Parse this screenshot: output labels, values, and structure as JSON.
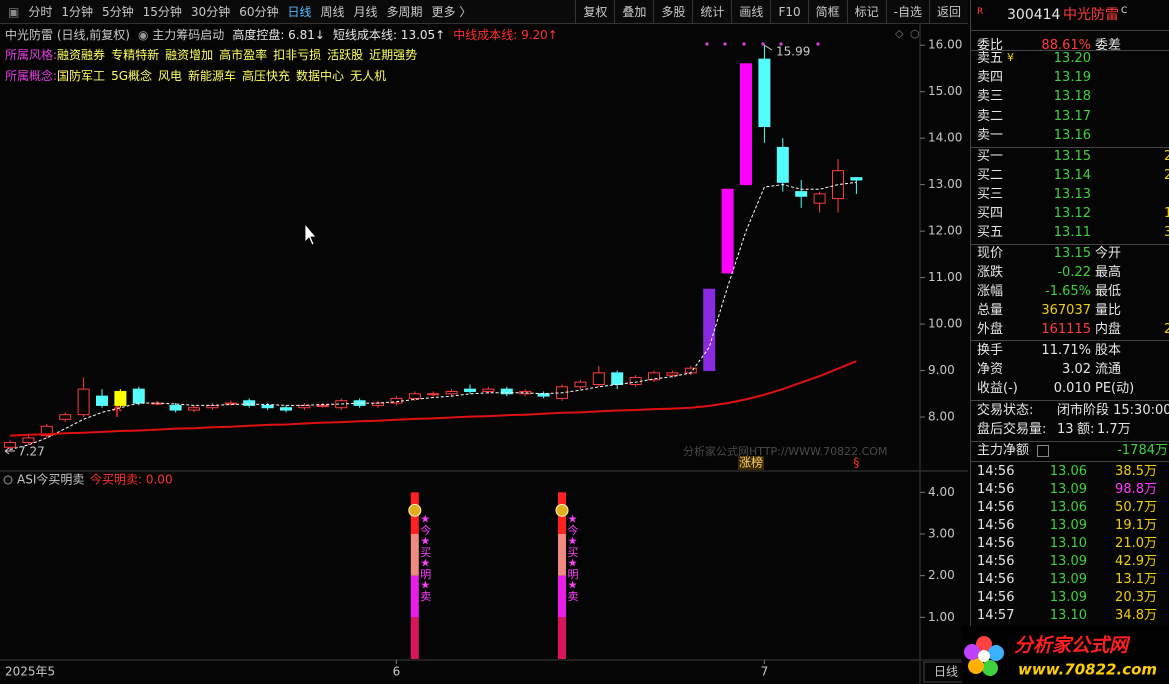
{
  "toolbar": {
    "periods": [
      "分时",
      "1分钟",
      "5分钟",
      "15分钟",
      "30分钟",
      "60分钟",
      "日线",
      "周线",
      "月线",
      "多周期",
      "更多 〉"
    ],
    "tools": [
      "复权",
      "叠加",
      "多股",
      "统计",
      "画线",
      "F10",
      "简框",
      "标记",
      "-自选",
      "返回"
    ]
  },
  "info": {
    "title": "中光防雷 (日线,前复权)",
    "indicator": "主力筹码启动",
    "control": "高度控盘: 6.81↓",
    "short_cost": "短线成本线: 13.05↑",
    "mid_cost": "中线成本线: 9.20↑",
    "style_label": "所属风格:",
    "styles": [
      "融资融券",
      "专精特新",
      "融资增加",
      "高市盈率",
      "扣非亏损",
      "活跃股",
      "近期强势"
    ],
    "concept_label": "所属概念:",
    "concepts": [
      "国防军工",
      "5G概念",
      "风电",
      "新能源车",
      "高压快充",
      "数据中心",
      "无人机"
    ]
  },
  "chart_data": [
    {
      "type": "candlestick",
      "categories": [
        "2025年5",
        null,
        null,
        null,
        null,
        null,
        null,
        null,
        null,
        null,
        null,
        null,
        null,
        null,
        null,
        null,
        null,
        null,
        null,
        null,
        null,
        "6",
        null,
        null,
        null,
        null,
        null,
        null,
        null,
        null,
        null,
        null,
        null,
        null,
        null,
        null,
        null,
        null,
        null,
        null,
        null,
        "7",
        null,
        null,
        null,
        null,
        null
      ],
      "open": [
        7.35,
        7.45,
        7.6,
        7.95,
        8.05,
        8.45,
        8.25,
        8.6,
        8.3,
        8.25,
        8.15,
        8.2,
        8.3,
        8.35,
        8.25,
        8.2,
        8.2,
        8.25,
        8.2,
        8.35,
        8.25,
        8.3,
        8.4,
        8.5,
        8.5,
        8.6,
        8.55,
        8.6,
        8.5,
        8.5,
        8.4,
        8.65,
        8.7,
        8.95,
        8.7,
        8.8,
        8.9,
        8.95,
        9.0,
        11.1,
        13.0,
        15.7,
        13.8,
        12.85,
        12.6,
        12.7,
        13.15
      ],
      "close": [
        7.45,
        7.55,
        7.8,
        8.05,
        8.6,
        8.25,
        8.55,
        8.3,
        8.3,
        8.15,
        8.2,
        8.25,
        8.3,
        8.25,
        8.2,
        8.15,
        8.25,
        8.25,
        8.35,
        8.25,
        8.3,
        8.4,
        8.5,
        8.5,
        8.55,
        8.55,
        8.6,
        8.5,
        8.55,
        8.45,
        8.65,
        8.75,
        8.95,
        8.7,
        8.85,
        8.95,
        8.95,
        9.05,
        10.75,
        12.9,
        15.6,
        14.25,
        13.05,
        12.75,
        12.8,
        13.3,
        13.1
      ],
      "high": [
        7.5,
        7.6,
        7.85,
        8.1,
        8.85,
        8.6,
        8.6,
        8.65,
        8.35,
        8.3,
        8.25,
        8.3,
        8.35,
        8.4,
        8.3,
        8.25,
        8.3,
        8.3,
        8.4,
        8.4,
        8.35,
        8.45,
        8.55,
        8.55,
        8.6,
        8.7,
        8.65,
        8.65,
        8.6,
        8.55,
        8.7,
        8.8,
        9.1,
        9.0,
        8.9,
        9.0,
        9.0,
        9.1,
        10.75,
        12.9,
        15.6,
        15.99,
        14.0,
        13.1,
        12.85,
        13.55,
        13.15
      ],
      "low": [
        7.27,
        7.4,
        7.55,
        7.9,
        8.0,
        8.2,
        8.2,
        8.25,
        8.25,
        8.1,
        8.1,
        8.15,
        8.25,
        8.2,
        8.15,
        8.1,
        8.15,
        8.2,
        8.15,
        8.2,
        8.2,
        8.25,
        8.35,
        8.45,
        8.45,
        8.5,
        8.5,
        8.45,
        8.45,
        8.4,
        8.35,
        8.6,
        8.65,
        8.6,
        8.65,
        8.75,
        8.85,
        8.9,
        9.0,
        11.1,
        13.0,
        13.9,
        12.85,
        12.5,
        12.4,
        12.4,
        12.8
      ],
      "up_color": "#ff3c3c",
      "down_color": "#54fcfc",
      "highlights": [
        {
          "index": 6,
          "color": "#ffff00"
        },
        {
          "index": 38,
          "color": "#8a2be2"
        },
        {
          "index": 39,
          "color": "#ff00ff"
        },
        {
          "index": 40,
          "color": "#ff00ff"
        }
      ],
      "series": [
        {
          "color": "#ffffff",
          "dashed": true,
          "values": [
            7.3,
            7.4,
            7.55,
            7.75,
            7.95,
            8.1,
            8.2,
            8.3,
            8.3,
            8.28,
            8.25,
            8.25,
            8.27,
            8.28,
            8.27,
            8.25,
            8.25,
            8.27,
            8.28,
            8.3,
            8.3,
            8.33,
            8.38,
            8.42,
            8.45,
            8.5,
            8.52,
            8.52,
            8.52,
            8.5,
            8.52,
            8.58,
            8.65,
            8.7,
            8.75,
            8.82,
            8.87,
            8.95,
            9.5,
            10.8,
            12.0,
            12.95,
            13.0,
            12.9,
            12.9,
            13.0,
            13.05
          ]
        },
        {
          "color": "#e01010",
          "dashed": false,
          "values": [
            7.6,
            7.62,
            7.63,
            7.65,
            7.66,
            7.68,
            7.7,
            7.71,
            7.73,
            7.75,
            7.76,
            7.78,
            7.79,
            7.81,
            7.83,
            7.84,
            7.86,
            7.88,
            7.89,
            7.91,
            7.92,
            7.94,
            7.96,
            7.97,
            7.99,
            8.01,
            8.02,
            8.04,
            8.05,
            8.07,
            8.09,
            8.1,
            8.12,
            8.14,
            8.15,
            8.17,
            8.18,
            8.2,
            8.24,
            8.3,
            8.38,
            8.48,
            8.6,
            8.74,
            8.88,
            9.04,
            9.2
          ]
        }
      ],
      "annotations": [
        "涨榜",
        "§"
      ],
      "watermark": "分析家公式网HTTP://WWW.70822.COM",
      "ylim": [
        6.86,
        16.37
      ],
      "yticks": [
        {
          "value": 16,
          "label": "16.00"
        },
        {
          "value": 15,
          "label": "15.00"
        },
        {
          "value": 14,
          "label": "14.00"
        },
        {
          "value": 13,
          "label": "13.00"
        },
        {
          "value": 12,
          "label": "12.00"
        },
        {
          "value": 11,
          "label": "11.00"
        },
        {
          "value": 10,
          "label": "10.00"
        },
        {
          "value": 9,
          "label": "9.00"
        },
        {
          "value": 8,
          "label": "8.00"
        }
      ]
    },
    {
      "type": "stacked_bar",
      "title": "ASI今买明卖",
      "subtitle": "今买明卖: 0.00",
      "annotation": "★今★买★明★卖",
      "series": [
        {
          "color": "#d8145c",
          "values": [
            null,
            null,
            null,
            null,
            null,
            null,
            null,
            null,
            null,
            null,
            null,
            null,
            null,
            null,
            null,
            null,
            null,
            null,
            null,
            null,
            null,
            null,
            1,
            null,
            null,
            null,
            null,
            null,
            null,
            null,
            1,
            null,
            null,
            null,
            null,
            null,
            null,
            null,
            null,
            null,
            null,
            null,
            null,
            null,
            null,
            null,
            null
          ]
        },
        {
          "color": "#e81ee8",
          "values": [
            null,
            null,
            null,
            null,
            null,
            null,
            null,
            null,
            null,
            null,
            null,
            null,
            null,
            null,
            null,
            null,
            null,
            null,
            null,
            null,
            null,
            null,
            1,
            null,
            null,
            null,
            null,
            null,
            null,
            null,
            1,
            null,
            null,
            null,
            null,
            null,
            null,
            null,
            null,
            null,
            null,
            null,
            null,
            null,
            null,
            null,
            null
          ]
        },
        {
          "color": "#f08a80",
          "values": [
            null,
            null,
            null,
            null,
            null,
            null,
            null,
            null,
            null,
            null,
            null,
            null,
            null,
            null,
            null,
            null,
            null,
            null,
            null,
            null,
            null,
            null,
            1,
            null,
            null,
            null,
            null,
            null,
            null,
            null,
            1,
            null,
            null,
            null,
            null,
            null,
            null,
            null,
            null,
            null,
            null,
            null,
            null,
            null,
            null,
            null,
            null
          ]
        },
        {
          "color": "#ff2020",
          "values": [
            null,
            null,
            null,
            null,
            null,
            null,
            null,
            null,
            null,
            null,
            null,
            null,
            null,
            null,
            null,
            null,
            null,
            null,
            null,
            null,
            null,
            null,
            1,
            null,
            null,
            null,
            null,
            null,
            null,
            null,
            1,
            null,
            null,
            null,
            null,
            null,
            null,
            null,
            null,
            null,
            null,
            null,
            null,
            null,
            null,
            null,
            null
          ]
        }
      ],
      "ylim": [
        0,
        4.44
      ],
      "yticks": [
        {
          "value": 4,
          "label": "4.00"
        },
        {
          "value": 3,
          "label": "3.00"
        },
        {
          "value": 2,
          "label": "2.00"
        },
        {
          "value": 1,
          "label": "1.00"
        }
      ]
    }
  ],
  "quote": {
    "badge": "R",
    "code": "300414",
    "name": "中光防雷",
    "mark": "C",
    "ratio": {
      "label": "委比",
      "value": "88.61%",
      "label2": "委差"
    },
    "asks": [
      {
        "label": "卖五",
        "price": "13.20"
      },
      {
        "label": "卖四",
        "price": "13.19"
      },
      {
        "label": "卖三",
        "price": "13.18"
      },
      {
        "label": "卖二",
        "price": "13.17"
      },
      {
        "label": "卖一",
        "price": "13.16"
      }
    ],
    "bids": [
      {
        "label": "买一",
        "price": "13.15",
        "vol": "2"
      },
      {
        "label": "买二",
        "price": "13.14",
        "vol": "2"
      },
      {
        "label": "买三",
        "price": "13.13"
      },
      {
        "label": "买四",
        "price": "13.12",
        "vol": "1"
      },
      {
        "label": "买五",
        "price": "13.11",
        "vol": "3"
      }
    ],
    "stats": [
      {
        "label": "现价",
        "value": "13.15",
        "label2": "今开"
      },
      {
        "label": "涨跌",
        "value": "-0.22",
        "label2": "最高"
      },
      {
        "label": "涨幅",
        "value": "-1.65%",
        "label2": "最低"
      },
      {
        "label": "总量",
        "value": "367037",
        "label2": "量比"
      },
      {
        "label": "外盘",
        "value": "161115",
        "label2": "内盘",
        "value2": "2"
      }
    ],
    "fundamentals": [
      {
        "label": "换手",
        "value": "11.71%",
        "label2": "股本"
      },
      {
        "label": "净资",
        "value": "3.02",
        "label2": "流通"
      },
      {
        "label": "收益(-)",
        "value": "0.010",
        "label2": "PE(动)"
      }
    ],
    "status": [
      {
        "label": "交易状态:",
        "value": "闭市阶段 15:30:00"
      },
      {
        "label": "盘后交易量:",
        "value": "13",
        "label2": "额:",
        "value2": "1.7万"
      }
    ],
    "flow": {
      "label": "主力净额",
      "value": "-1784万"
    },
    "ticks": [
      [
        "14:56",
        "13.06",
        "38.5万"
      ],
      [
        "14:56",
        "13.09",
        "98.8万"
      ],
      [
        "14:56",
        "13.06",
        "50.7万"
      ],
      [
        "14:56",
        "13.09",
        "19.1万"
      ],
      [
        "14:56",
        "13.10",
        "21.0万"
      ],
      [
        "14:56",
        "13.09",
        "42.9万"
      ],
      [
        "14:56",
        "13.09",
        "13.1万"
      ],
      [
        "14:56",
        "13.09",
        "20.3万"
      ],
      [
        "14:57",
        "13.10",
        "34.8万"
      ]
    ]
  },
  "footer": {
    "period": "日线"
  },
  "logo": {
    "name": "分析家公式网",
    "url": "www.70822.com"
  }
}
